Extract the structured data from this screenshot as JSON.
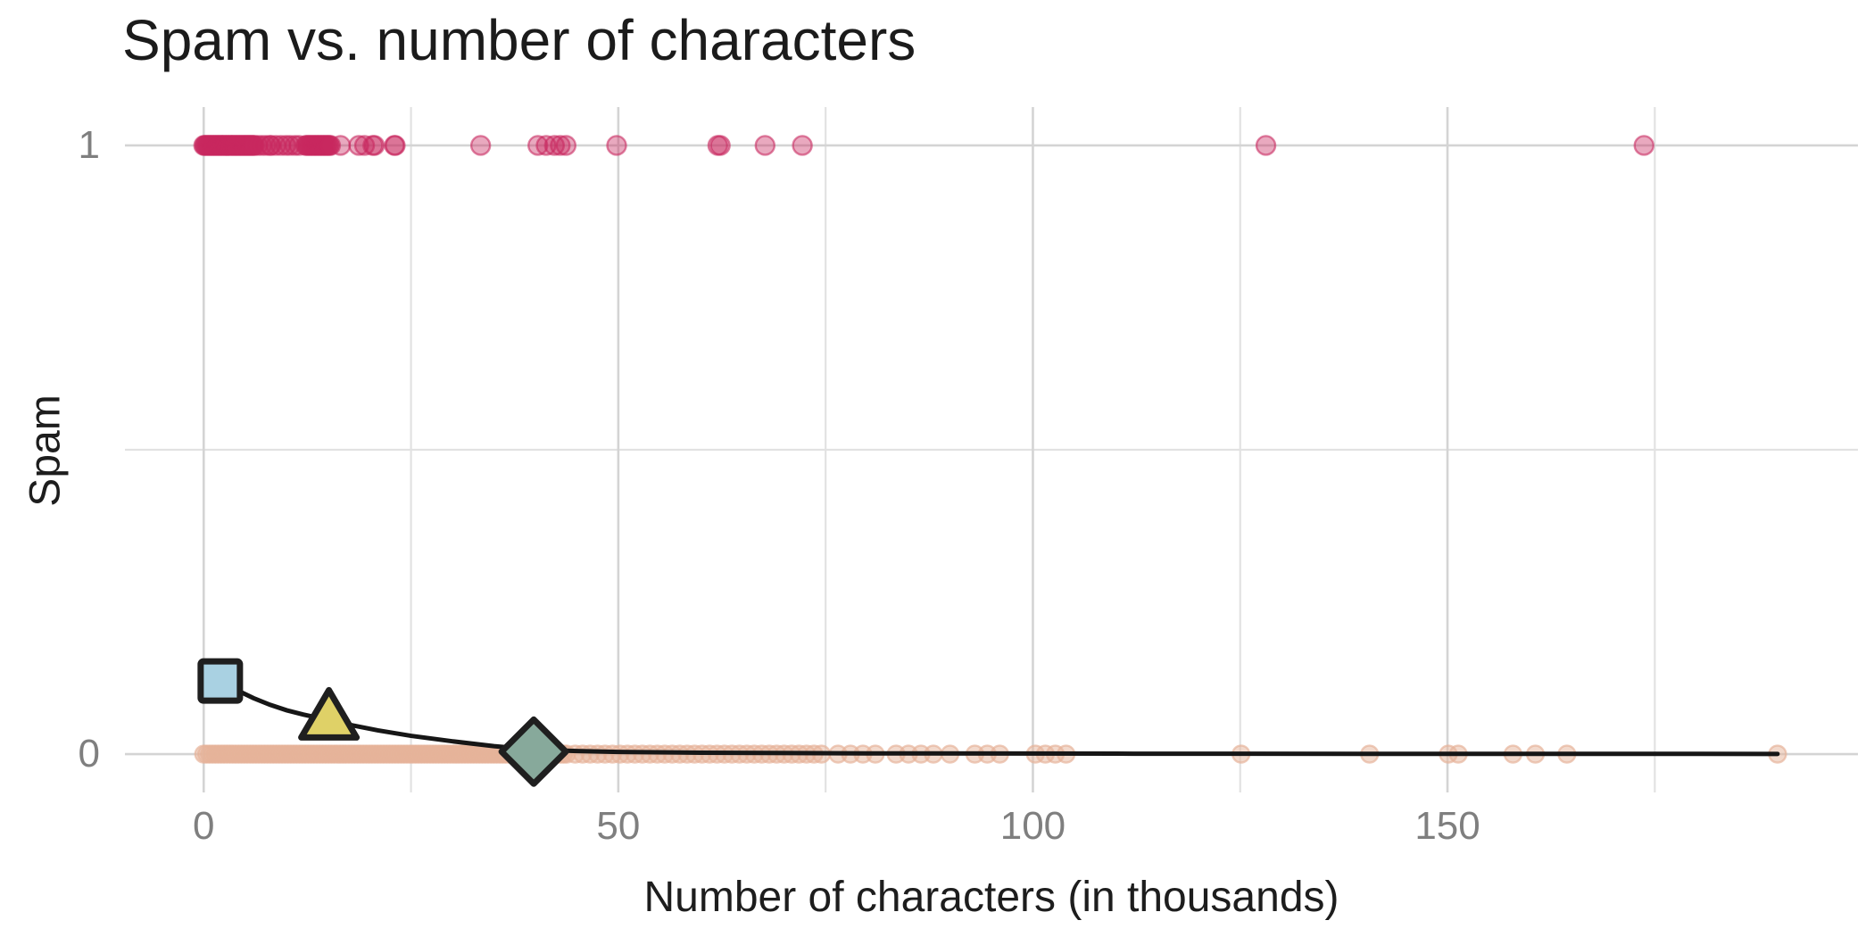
{
  "chart_data": {
    "type": "scatter",
    "title": "Spam vs. number of characters",
    "xlabel": "Number of characters (in thousands)",
    "ylabel": "Spam",
    "grid": true,
    "legend": "none",
    "xlim": [
      -9.5,
      199.5
    ],
    "ylim": [
      -0.063,
      1.063
    ],
    "x_ticks": [
      {
        "v": 0,
        "label": "0"
      },
      {
        "v": 50,
        "label": "50"
      },
      {
        "v": 100,
        "label": "100"
      },
      {
        "v": 150,
        "label": "150"
      }
    ],
    "x_minor": [
      25,
      75,
      125,
      175
    ],
    "y_ticks": [
      {
        "v": 0,
        "label": "0"
      },
      {
        "v": 1,
        "label": "1"
      }
    ],
    "y_minor": [
      0.5
    ],
    "colors": {
      "spam_point": "#C8285E",
      "ham_point": "#E6B39A",
      "fit_line": "#161616",
      "marker_stroke": "#1f1f1f",
      "grid_major": "#d4d4d4",
      "grid_minor": "#e2e2e2",
      "tick_label": "#7f7f7f",
      "text": "#1d1d1d"
    },
    "series": [
      {
        "name": "spam-1-points",
        "y": 1,
        "alpha": 0.4,
        "radius": 10.5,
        "color": "#C8285E",
        "x_clusters": [
          {
            "from": 0.0,
            "to": 6.2,
            "step": 0.12
          },
          {
            "from": 12.3,
            "to": 15.3,
            "step": 0.15
          }
        ],
        "x_points": [
          6.5,
          7.0,
          7.5,
          8.0,
          8.1,
          8.7,
          9.3,
          9.9,
          10.4,
          11.0,
          11.5,
          16.5,
          18.7,
          19.4,
          20.4,
          20.6,
          23.0,
          23.1,
          33.4,
          40.3,
          41.3,
          42.3,
          43.0,
          43.7,
          49.8,
          62.0,
          62.3,
          67.7,
          72.2,
          128.1,
          173.7
        ]
      },
      {
        "name": "spam-0-points",
        "y": 0,
        "alpha": 0.5,
        "radius": 9.5,
        "color": "#E6B39A",
        "x_clusters": [
          {
            "from": 0.0,
            "to": 44.0,
            "step": 0.35
          },
          {
            "from": 44.8,
            "to": 75.0,
            "step": 0.9
          }
        ],
        "x_points": [
          76.5,
          78.0,
          79.5,
          81.0,
          83.5,
          85.0,
          86.5,
          88.0,
          90.0,
          93.0,
          94.5,
          96.0,
          100.3,
          101.5,
          102.7,
          104.0,
          125.1,
          140.6,
          150.1,
          151.3,
          157.9,
          160.6,
          164.4,
          189.8
        ]
      }
    ],
    "fit_curve": {
      "x": [
        1.5,
        2,
        4,
        6,
        8,
        10,
        12,
        15,
        18,
        21,
        25,
        30,
        35,
        40,
        45,
        50,
        60,
        80,
        110,
        150,
        189.8
      ],
      "y": [
        0.127,
        0.12,
        0.105,
        0.092,
        0.081,
        0.072,
        0.065,
        0.056,
        0.047,
        0.039,
        0.03,
        0.021,
        0.013,
        0.007,
        0.005,
        0.0035,
        0.0022,
        0.0012,
        0.0007,
        0.0004,
        0.0003
      ]
    },
    "markers": [
      {
        "shape": "square",
        "x": 2.0,
        "y": 0.12,
        "fill": "#A9D1E2"
      },
      {
        "shape": "triangle",
        "x": 15.1,
        "y": 0.061,
        "fill": "#DFD167"
      },
      {
        "shape": "diamond",
        "x": 39.8,
        "y": 0.004,
        "fill": "#87A99B"
      }
    ]
  }
}
